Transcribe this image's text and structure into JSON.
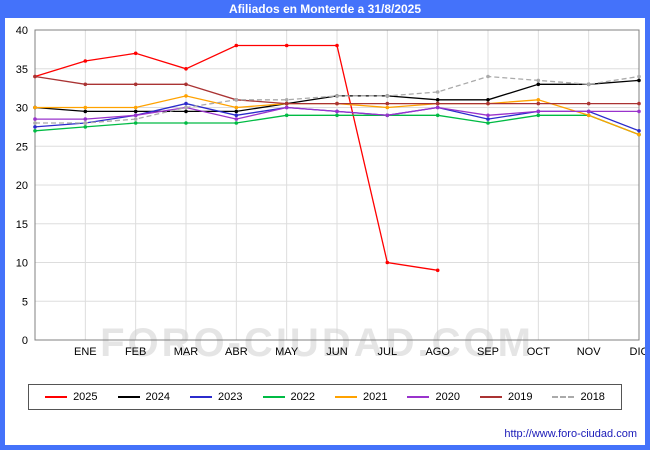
{
  "page": {
    "title": "Afiliados en Monterde a 31/8/2025",
    "watermark": "FORO-CIUDAD.COM",
    "footer_url": "http://www.foro-ciudad.com",
    "frame_color": "#4472fa"
  },
  "chart_data": {
    "type": "line",
    "title": "Afiliados en Monterde a 31/8/2025",
    "categories": [
      "",
      "ENE",
      "FEB",
      "MAR",
      "ABR",
      "MAY",
      "JUN",
      "JUL",
      "AGO",
      "SEP",
      "OCT",
      "NOV",
      "DIC"
    ],
    "xlabel": "",
    "ylabel": "",
    "ylim": [
      0,
      40
    ],
    "ytick_step": 5,
    "grid": true,
    "legend_position": "bottom",
    "series": [
      {
        "name": "2025",
        "color": "#ff0000",
        "values": [
          34,
          36,
          37,
          35,
          38,
          38,
          38,
          10,
          9,
          null,
          null,
          null,
          null
        ]
      },
      {
        "name": "2024",
        "color": "#000000",
        "values": [
          30,
          29.5,
          29.5,
          29.5,
          29.5,
          30.5,
          31.5,
          31.5,
          31,
          31,
          33,
          33,
          33.5
        ]
      },
      {
        "name": "2023",
        "color": "#2b2bcc",
        "values": [
          27.5,
          28,
          29,
          30.5,
          29,
          30,
          29.5,
          29,
          30,
          28.5,
          29.5,
          29.5,
          27
        ]
      },
      {
        "name": "2022",
        "color": "#00bb44",
        "values": [
          27,
          27.5,
          28,
          28,
          28,
          29,
          29,
          29,
          29,
          28,
          29,
          29,
          26.5
        ]
      },
      {
        "name": "2021",
        "color": "#ffa200",
        "values": [
          30,
          30,
          30,
          31.5,
          30,
          30.5,
          30.5,
          30,
          30.5,
          30.5,
          31,
          29,
          26.5
        ]
      },
      {
        "name": "2020",
        "color": "#9933cc",
        "values": [
          28.5,
          28.5,
          29,
          30,
          28.5,
          30,
          29.5,
          29,
          30,
          29,
          29.5,
          29.5,
          29.5
        ]
      },
      {
        "name": "2019",
        "color": "#aa3333",
        "values": [
          34,
          33,
          33,
          33,
          31,
          30.5,
          30.5,
          30.5,
          30.5,
          30.5,
          30.5,
          30.5,
          30.5
        ]
      },
      {
        "name": "2018",
        "color": "#aaaaaa",
        "dash": true,
        "values": [
          28,
          28,
          28.5,
          30,
          31,
          31,
          31.5,
          31.5,
          32,
          34,
          33.5,
          33,
          34
        ]
      }
    ]
  }
}
